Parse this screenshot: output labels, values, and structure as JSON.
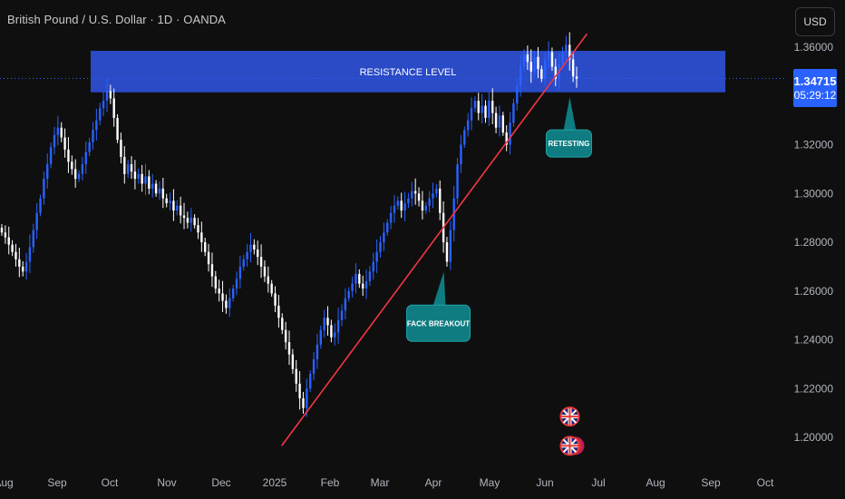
{
  "header": {
    "symbol_title": "British Pound / U.S. Dollar · 1D · OANDA",
    "currency_button": "USD"
  },
  "price_badge": {
    "price": "1.34715",
    "countdown": "05:29:12"
  },
  "colors": {
    "background": "#0f0f0f",
    "bull_candle": "#2962ff",
    "bear_candle": "#ffffff",
    "trendline": "#f23645",
    "resistance_zone": "#2c4fd4",
    "callout": "#0e7c80",
    "axis_text": "#b2b5be"
  },
  "chart_data": {
    "type": "candlestick",
    "series": [
      {
        "closes": [
          1.284,
          1.282,
          1.279,
          1.276,
          1.273,
          1.27,
          1.268,
          1.272,
          1.278,
          1.285,
          1.292,
          1.298,
          1.306,
          1.312,
          1.319,
          1.324,
          1.327,
          1.323,
          1.318,
          1.313,
          1.31,
          1.306,
          1.308,
          1.312,
          1.317,
          1.321,
          1.326,
          1.33,
          1.335,
          1.338,
          1.342,
          1.339,
          1.331,
          1.322,
          1.315,
          1.308,
          1.312,
          1.309,
          1.306,
          1.308,
          1.304,
          1.307,
          1.302,
          1.304,
          1.3,
          1.302,
          1.298,
          1.296,
          1.297,
          1.293,
          1.295,
          1.291,
          1.29,
          1.288,
          1.29,
          1.287,
          1.284,
          1.28,
          1.276,
          1.271,
          1.266,
          1.261,
          1.259,
          1.256,
          1.253,
          1.257,
          1.261,
          1.265,
          1.27,
          1.273,
          1.276,
          1.279,
          1.277,
          1.274,
          1.27,
          1.266,
          1.263,
          1.259,
          1.254,
          1.249,
          1.244,
          1.239,
          1.234,
          1.228,
          1.222,
          1.216,
          1.212,
          1.22,
          1.226,
          1.232,
          1.238,
          1.244,
          1.249,
          1.246,
          1.241,
          1.243,
          1.248,
          1.252,
          1.257,
          1.26,
          1.263,
          1.267,
          1.263,
          1.261,
          1.264,
          1.268,
          1.272,
          1.276,
          1.28,
          1.284,
          1.288,
          1.292,
          1.295,
          1.297,
          1.293,
          1.296,
          1.298,
          1.301,
          1.3,
          1.297,
          1.293,
          1.295,
          1.298,
          1.3,
          1.302,
          1.292,
          1.28,
          1.272,
          1.285,
          1.298,
          1.312,
          1.32,
          1.326,
          1.33,
          1.335,
          1.338,
          1.333,
          1.336,
          1.331,
          1.338,
          1.333,
          1.327,
          1.332,
          1.325,
          1.32,
          1.329,
          1.337,
          1.344,
          1.352,
          1.357,
          1.354,
          1.35,
          1.356,
          1.351,
          1.347,
          1.355,
          1.358,
          1.352,
          1.347,
          1.353,
          1.358,
          1.361,
          1.355,
          1.348,
          1.347
        ]
      }
    ],
    "y_axis": {
      "ticks": [
        "1.36000",
        "1.34000",
        "1.32000",
        "1.30000",
        "1.28000",
        "1.26000",
        "1.24000",
        "1.22000",
        "1.20000"
      ],
      "range": [
        1.19,
        1.365
      ]
    },
    "x_axis": {
      "ticks": [
        "Aug",
        "Sep",
        "Oct",
        "Nov",
        "Dec",
        "2025",
        "Feb",
        "Mar",
        "Apr",
        "May",
        "Jun",
        "Jul",
        "Aug",
        "Sep",
        "Oct"
      ]
    },
    "resistance_zone": {
      "label": "RESISTANCE LEVEL",
      "low": 1.3415,
      "high": 1.3585
    },
    "trendline": {
      "start": {
        "date": "2025-01-05",
        "price": 1.1965
      },
      "end": {
        "date": "2025-07-01",
        "price": 1.3655
      }
    },
    "current_price": 1.34715,
    "annotations": [
      {
        "label": "FACK BREAKOUT",
        "date": "2025-04-09",
        "price": 1.268
      },
      {
        "label": "RETESTING",
        "date": "2025-06-21",
        "price": 1.3395
      }
    ],
    "event_markers": [
      {
        "date": "2025-06-21",
        "price": 1.2085,
        "icon": "uk-flag-icon"
      },
      {
        "date": "2025-06-21",
        "price": 1.1965,
        "icon": "uk-flag-stack-icon"
      }
    ]
  }
}
